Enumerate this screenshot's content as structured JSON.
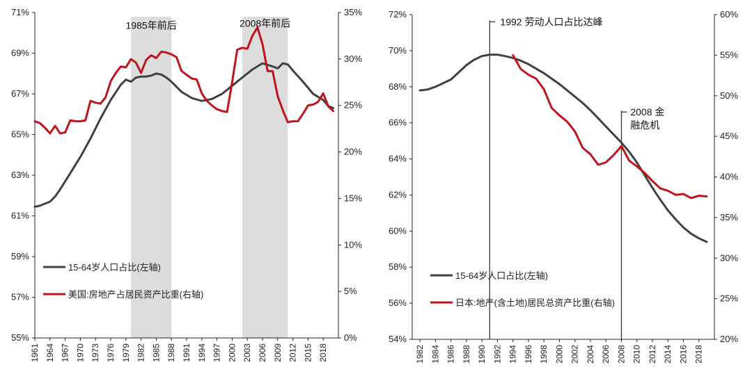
{
  "colors": {
    "population": "#404040",
    "housing": "#c0141c",
    "shade": "#dddddd",
    "axis": "#222222"
  },
  "chart_data": [
    {
      "type": "line",
      "title": "",
      "ylim_left": [
        55,
        71
      ],
      "ylim_right": [
        0,
        35
      ],
      "yticks_left": [
        "55%",
        "57%",
        "59%",
        "61%",
        "63%",
        "65%",
        "67%",
        "69%",
        "71%"
      ],
      "yticks_right": [
        "0%",
        "5%",
        "10%",
        "15%",
        "20%",
        "25%",
        "30%",
        "35%"
      ],
      "xlim": [
        1961,
        2021
      ],
      "xticks": [
        "1961",
        "1964",
        "1967",
        "1970",
        "1973",
        "1976",
        "1979",
        "1982",
        "1985",
        "1988",
        "1991",
        "1994",
        "1997",
        "2000",
        "2003",
        "2006",
        "2009",
        "2012",
        "2015",
        "2018"
      ],
      "shaded_ranges": [
        [
          1980,
          1988
        ],
        [
          2002,
          2011
        ]
      ],
      "annotations": [
        {
          "text": "1985年前后",
          "x": 1984,
          "y": 70.2,
          "axis": "left"
        },
        {
          "text": "2008年前后",
          "x": 2006.5,
          "y": 70.3,
          "axis": "left"
        }
      ],
      "legend": [
        "15-64岁人口占比(左轴)",
        "美国:房地产占居民资产比重(右轴)"
      ],
      "series": [
        {
          "name": "15-64岁人口占比(左轴)",
          "axis": "left",
          "x": [
            1961,
            1962,
            1963,
            1964,
            1965,
            1966,
            1967,
            1968,
            1970,
            1972,
            1974,
            1976,
            1978,
            1979,
            1980,
            1981,
            1982,
            1983,
            1984,
            1985,
            1986,
            1987,
            1988,
            1989,
            1990,
            1992,
            1994,
            1996,
            1998,
            2000,
            2002,
            2004,
            2006,
            2008,
            2009,
            2010,
            2011,
            2012,
            2014,
            2016,
            2018,
            2019,
            2020
          ],
          "values": [
            61.45,
            61.5,
            61.6,
            61.7,
            61.95,
            62.3,
            62.7,
            63.1,
            63.9,
            64.8,
            65.8,
            66.7,
            67.45,
            67.7,
            67.6,
            67.8,
            67.85,
            67.85,
            67.9,
            68.0,
            67.95,
            67.8,
            67.6,
            67.35,
            67.1,
            66.8,
            66.65,
            66.75,
            67.0,
            67.4,
            67.8,
            68.2,
            68.5,
            68.35,
            68.25,
            68.5,
            68.45,
            68.15,
            67.6,
            67.0,
            66.7,
            66.4,
            66.3
          ]
        },
        {
          "name": "美国:房地产占居民资产比重(右轴)",
          "axis": "right",
          "x": [
            1961,
            1962,
            1963,
            1964,
            1965,
            1966,
            1967,
            1968,
            1969,
            1970,
            1971,
            1972,
            1973,
            1974,
            1975,
            1976,
            1977,
            1978,
            1979,
            1980,
            1981,
            1982,
            1983,
            1984,
            1985,
            1986,
            1987,
            1988,
            1989,
            1990,
            1991,
            1992,
            1993,
            1994,
            1995,
            1996,
            1997,
            1998,
            1999,
            2000,
            2001,
            2002,
            2003,
            2004,
            2005,
            2006,
            2007,
            2008,
            2009,
            2010,
            2011,
            2012,
            2013,
            2014,
            2015,
            2016,
            2017,
            2018,
            2019,
            2020
          ],
          "values": [
            23.3,
            23.1,
            22.6,
            22.0,
            22.8,
            22.0,
            22.1,
            23.4,
            23.3,
            23.3,
            23.4,
            25.5,
            25.3,
            25.2,
            25.9,
            27.6,
            28.5,
            29.2,
            29.1,
            30.0,
            29.6,
            28.5,
            29.9,
            30.4,
            30.1,
            30.8,
            30.7,
            30.5,
            30.2,
            28.7,
            28.3,
            27.9,
            27.8,
            26.3,
            25.5,
            25.0,
            24.6,
            24.4,
            24.3,
            27.5,
            31.0,
            31.2,
            31.1,
            32.5,
            33.4,
            31.6,
            28.7,
            28.7,
            26.0,
            24.5,
            23.2,
            23.3,
            23.3,
            24.1,
            25.0,
            25.1,
            25.4,
            26.3,
            24.9,
            24.4
          ]
        }
      ]
    },
    {
      "type": "line",
      "title": "",
      "ylim_left": [
        54,
        72
      ],
      "ylim_right": [
        20,
        60
      ],
      "yticks_left": [
        "54%",
        "56%",
        "58%",
        "60%",
        "62%",
        "64%",
        "66%",
        "68%",
        "70%",
        "72%"
      ],
      "yticks_right": [
        "20%",
        "25%",
        "30%",
        "35%",
        "40%",
        "45%",
        "50%",
        "55%",
        "60%"
      ],
      "xlim": [
        1981,
        2020
      ],
      "xticks": [
        "1982",
        "1984",
        "1986",
        "1988",
        "1990",
        "1992",
        "1994",
        "1996",
        "1998",
        "2000",
        "2002",
        "2004",
        "2006",
        "2008",
        "2010",
        "2012",
        "2014",
        "2016",
        "2018"
      ],
      "vlines": [
        1991,
        2008
      ],
      "annotations": [
        {
          "lines": [
            "1992  劳动人口占比达峰"
          ],
          "x": 1992,
          "y": 71.6,
          "axis": "left"
        },
        {
          "lines": [
            "2008  金",
            "融危机"
          ],
          "x": 2008.8,
          "y": 66.6,
          "axis": "left"
        }
      ],
      "legend": [
        "15-64岁人口占比(左轴)",
        "日本:地产(含土地)居民总资产比重(右轴)"
      ],
      "series": [
        {
          "name": "15-64岁人口占比(左轴)",
          "axis": "left",
          "x": [
            1982,
            1983,
            1984,
            1985,
            1986,
            1987,
            1988,
            1989,
            1990,
            1991,
            1992,
            1993,
            1994,
            1995,
            1996,
            1997,
            1998,
            1999,
            2000,
            2001,
            2002,
            2003,
            2004,
            2005,
            2006,
            2007,
            2008,
            2009,
            2010,
            2011,
            2012,
            2013,
            2014,
            2015,
            2016,
            2017,
            2018,
            2019
          ],
          "values": [
            67.8,
            67.85,
            68.0,
            68.2,
            68.4,
            68.8,
            69.2,
            69.5,
            69.7,
            69.78,
            69.78,
            69.7,
            69.6,
            69.45,
            69.25,
            69.0,
            68.75,
            68.45,
            68.15,
            67.8,
            67.45,
            67.1,
            66.7,
            66.25,
            65.8,
            65.35,
            64.9,
            64.4,
            63.8,
            63.1,
            62.4,
            61.75,
            61.15,
            60.65,
            60.2,
            59.85,
            59.6,
            59.4
          ]
        },
        {
          "name": "日本:地产(含土地)居民总资产比重(右轴)",
          "axis": "right",
          "x": [
            1994,
            1995,
            1996,
            1997,
            1998,
            1999,
            2000,
            2001,
            2002,
            2003,
            2004,
            2005,
            2006,
            2007,
            2008,
            2009,
            2010,
            2011,
            2012,
            2013,
            2014,
            2015,
            2016,
            2017,
            2018,
            2019
          ],
          "values": [
            55.0,
            53.3,
            52.6,
            52.1,
            50.8,
            48.5,
            47.6,
            46.8,
            45.6,
            43.6,
            42.8,
            41.5,
            41.8,
            42.7,
            43.8,
            42.0,
            41.3,
            40.5,
            39.5,
            38.6,
            38.3,
            37.8,
            37.9,
            37.4,
            37.7,
            37.6
          ]
        }
      ]
    }
  ]
}
